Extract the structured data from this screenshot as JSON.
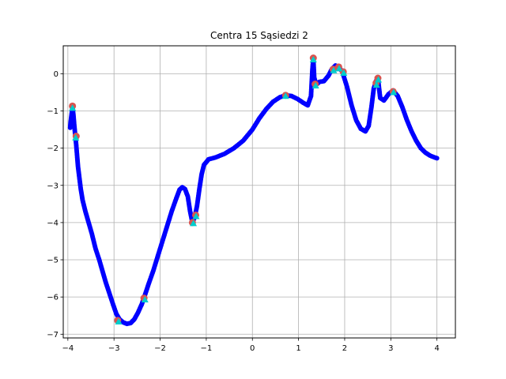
{
  "chart_data": {
    "type": "scatter",
    "title": "Centra 15 Sąsiedzi 2",
    "xlabel": "",
    "ylabel": "",
    "xlim": [
      -4.1,
      4.4
    ],
    "ylim": [
      -7.1,
      0.75
    ],
    "xticks": [
      -4,
      -3,
      -2,
      -1,
      0,
      1,
      2,
      3,
      4
    ],
    "xtick_labels": [
      "−4",
      "−3",
      "−2",
      "−1",
      "0",
      "1",
      "2",
      "3",
      "4"
    ],
    "yticks": [
      0,
      -1,
      -2,
      -3,
      -4,
      -5,
      -6,
      -7
    ],
    "ytick_labels": [
      "0",
      "−1",
      "−2",
      "−3",
      "−4",
      "−5",
      "−6",
      "−7"
    ],
    "grid": true,
    "colors": {
      "points": "#0000ff",
      "centers": "#d9534f",
      "neighbors": "#00cccc"
    },
    "series": [
      {
        "values": [
          [
            -3.95,
            -1.45
          ],
          [
            -3.94,
            -1.3
          ],
          [
            -3.92,
            -1.1
          ],
          [
            -3.9,
            -0.9
          ],
          [
            -3.88,
            -1.1
          ],
          [
            -3.86,
            -1.4
          ],
          [
            -3.84,
            -1.65
          ],
          [
            -3.82,
            -1.9
          ],
          [
            -3.8,
            -2.2
          ],
          [
            -3.78,
            -2.5
          ],
          [
            -3.75,
            -2.8
          ],
          [
            -3.72,
            -3.1
          ],
          [
            -3.68,
            -3.4
          ],
          [
            -3.62,
            -3.7
          ],
          [
            -3.55,
            -4.0
          ],
          [
            -3.48,
            -4.3
          ],
          [
            -3.4,
            -4.7
          ],
          [
            -3.32,
            -5.0
          ],
          [
            -3.25,
            -5.3
          ],
          [
            -3.18,
            -5.6
          ],
          [
            -3.1,
            -5.9
          ],
          [
            -3.02,
            -6.2
          ],
          [
            -2.95,
            -6.45
          ],
          [
            -2.88,
            -6.6
          ],
          [
            -2.8,
            -6.68
          ],
          [
            -2.72,
            -6.72
          ],
          [
            -2.64,
            -6.7
          ],
          [
            -2.56,
            -6.6
          ],
          [
            -2.48,
            -6.42
          ],
          [
            -2.4,
            -6.2
          ],
          [
            -2.33,
            -5.95
          ],
          [
            -2.25,
            -5.65
          ],
          [
            -2.15,
            -5.3
          ],
          [
            -2.05,
            -4.9
          ],
          [
            -1.95,
            -4.5
          ],
          [
            -1.85,
            -4.1
          ],
          [
            -1.75,
            -3.7
          ],
          [
            -1.65,
            -3.35
          ],
          [
            -1.58,
            -3.12
          ],
          [
            -1.52,
            -3.05
          ],
          [
            -1.46,
            -3.1
          ],
          [
            -1.4,
            -3.3
          ],
          [
            -1.35,
            -3.7
          ],
          [
            -1.3,
            -4.0
          ],
          [
            -1.25,
            -3.85
          ],
          [
            -1.2,
            -3.55
          ],
          [
            -1.15,
            -3.1
          ],
          [
            -1.1,
            -2.7
          ],
          [
            -1.05,
            -2.45
          ],
          [
            -0.95,
            -2.3
          ],
          [
            -0.8,
            -2.25
          ],
          [
            -0.6,
            -2.15
          ],
          [
            -0.4,
            -2.0
          ],
          [
            -0.2,
            -1.8
          ],
          [
            0.0,
            -1.5
          ],
          [
            0.15,
            -1.2
          ],
          [
            0.3,
            -0.95
          ],
          [
            0.45,
            -0.75
          ],
          [
            0.6,
            -0.63
          ],
          [
            0.72,
            -0.58
          ],
          [
            0.85,
            -0.6
          ],
          [
            0.98,
            -0.68
          ],
          [
            1.1,
            -0.78
          ],
          [
            1.2,
            -0.85
          ],
          [
            1.27,
            -0.6
          ],
          [
            1.3,
            0.1
          ],
          [
            1.32,
            0.42
          ],
          [
            1.34,
            -0.1
          ],
          [
            1.38,
            -0.3
          ],
          [
            1.45,
            -0.22
          ],
          [
            1.55,
            -0.2
          ],
          [
            1.65,
            -0.05
          ],
          [
            1.72,
            0.12
          ],
          [
            1.8,
            0.22
          ],
          [
            1.87,
            0.18
          ],
          [
            1.95,
            0.05
          ],
          [
            2.05,
            -0.35
          ],
          [
            2.15,
            -0.85
          ],
          [
            2.25,
            -1.25
          ],
          [
            2.35,
            -1.48
          ],
          [
            2.45,
            -1.55
          ],
          [
            2.52,
            -1.4
          ],
          [
            2.58,
            -0.9
          ],
          [
            2.63,
            -0.4
          ],
          [
            2.68,
            -0.2
          ],
          [
            2.72,
            -0.12
          ],
          [
            2.77,
            -0.65
          ],
          [
            2.85,
            -0.72
          ],
          [
            2.95,
            -0.55
          ],
          [
            3.05,
            -0.45
          ],
          [
            3.15,
            -0.6
          ],
          [
            3.25,
            -0.9
          ],
          [
            3.35,
            -1.25
          ],
          [
            3.45,
            -1.55
          ],
          [
            3.55,
            -1.8
          ],
          [
            3.65,
            -2.0
          ],
          [
            3.75,
            -2.12
          ],
          [
            3.85,
            -2.2
          ],
          [
            3.95,
            -2.25
          ],
          [
            4.0,
            -2.27
          ]
        ]
      }
    ],
    "centers": [
      [
        -3.9,
        -0.87
      ],
      [
        -3.82,
        -1.68
      ],
      [
        -2.92,
        -6.63
      ],
      [
        -2.35,
        -6.03
      ],
      [
        -1.3,
        -4.0
      ],
      [
        -1.23,
        -3.8
      ],
      [
        0.72,
        -0.58
      ],
      [
        1.32,
        0.42
      ],
      [
        1.36,
        -0.28
      ],
      [
        1.75,
        0.12
      ],
      [
        1.97,
        0.05
      ],
      [
        2.68,
        -0.25
      ],
      [
        2.72,
        -0.12
      ],
      [
        3.05,
        -0.48
      ],
      [
        1.87,
        0.18
      ]
    ],
    "neighbors": [
      [
        -3.9,
        -0.92
      ],
      [
        -3.83,
        -1.72
      ],
      [
        -2.9,
        -6.66
      ],
      [
        -2.33,
        -6.07
      ],
      [
        -1.28,
        -4.02
      ],
      [
        -1.22,
        -3.83
      ],
      [
        0.72,
        -0.6
      ],
      [
        1.32,
        0.38
      ],
      [
        1.37,
        -0.32
      ],
      [
        1.76,
        0.09
      ],
      [
        1.98,
        0.02
      ],
      [
        2.69,
        -0.3
      ],
      [
        2.73,
        -0.16
      ],
      [
        3.06,
        -0.5
      ],
      [
        1.88,
        0.14
      ]
    ]
  }
}
